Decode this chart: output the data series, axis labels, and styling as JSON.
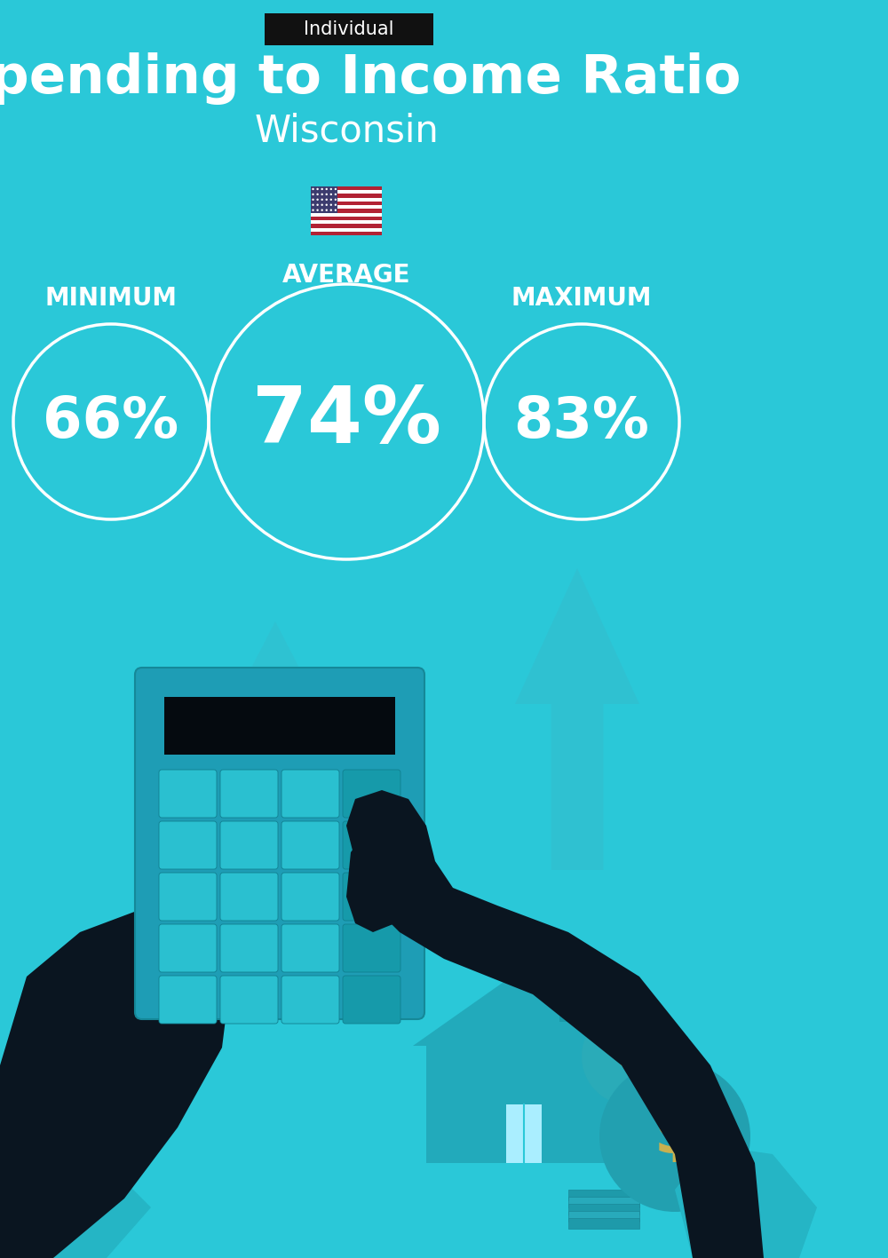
{
  "title": "Spending to Income Ratio",
  "subtitle": "Wisconsin",
  "tag_label": "Individual",
  "tag_bg": "#111111",
  "tag_fg": "#ffffff",
  "bg_color": "#2AC8D8",
  "text_color": "#ffffff",
  "min_label": "MINIMUM",
  "min_value": "66%",
  "avg_label": "AVERAGE",
  "avg_value": "74%",
  "max_label": "MAXIMUM",
  "max_value": "83%",
  "circle_color": "#ffffff",
  "title_fontsize": 44,
  "subtitle_fontsize": 30,
  "label_fontsize": 20,
  "min_value_fontsize": 46,
  "avg_value_fontsize": 64,
  "max_value_fontsize": 46,
  "tag_fontsize": 15,
  "arrow_color": "#35BBCC",
  "house_color": "#28B0C0",
  "dark_color": "#0A1520",
  "money_color": "#25AABB",
  "dollar_color": "#C8B050",
  "calc_body_color": "#1E9DB5",
  "calc_screen_color": "#050A0F",
  "calc_btn_color": "#2AC0D0",
  "calc_btn_dark_color": "#169AAA",
  "shirt_color": "#25B5C5",
  "wrist_color": "#1AAABB"
}
